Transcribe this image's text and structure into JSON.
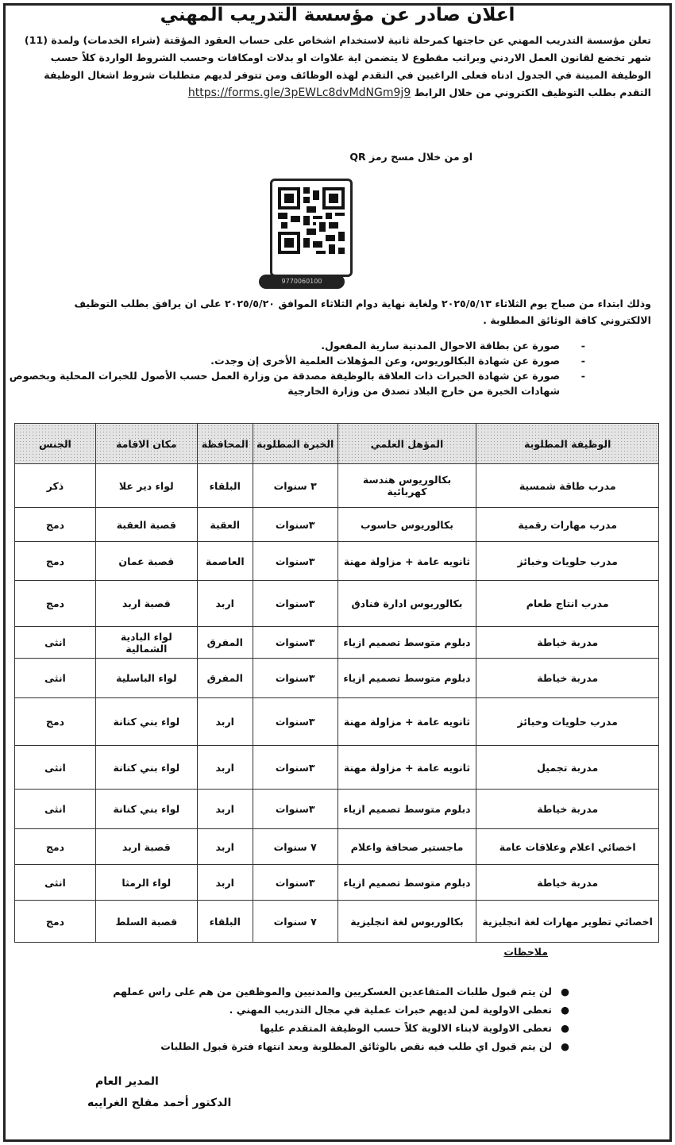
{
  "title": "اعلان صادر عن مؤسسة التدريب المهني",
  "intro": {
    "text": "تعلن مؤسسة التدريب المهني عن حاجتها كمرحلة ثانية لاستخدام اشخاص على حساب العقود المؤقتة (شراء الخدمات) ولمدة (11) شهر تخضع لقانون العمل الاردني وبراتب مقطوع لا يتضمن اية علاوات او بدلات اومكافات وحسب الشروط الواردة كلاً حسب الوظيفة المبينة في الجدول ادناه فعلى الراغبين في التقدم لهذه الوظائف ومن تتوفر لديهم متطلبات شروط اشغال الوظيفة التقدم بطلب التوظيف الكتروني من خلال الرابط",
    "link": "https://forms.gle/3pEWLc8dvMdNGm9j9"
  },
  "qr": {
    "label": "او من خلال مسح رمز QR",
    "pill_text": "9770060100"
  },
  "dates_text": "وذلك ابتداء من صباح يوم الثلاثاء ٢٠٢٥/٥/١٣ ولغاية نهاية دوام الثلاثاء الموافق ٢٠٢٥/٥/٢٠ على ان يرافق بطلب التوظيف الالكتروني كافة الوثائق المطلوبة .",
  "documents": [
    "صورة عن بطاقة الاحوال المدنية سارية المفعول.",
    "صورة عن شهادة البكالوريوس، وعن المؤهلات العلمية الأخرى إن وجدت.",
    "صورة عن شهادة الخبرات ذات العلاقة بالوظيفة مصدقة من وزارة العمل حسب الأصول للخبرات المحلية وبخصوص شهادات الخبرة من خارج البلاد تصدق من وزارة الخارجية"
  ],
  "table": {
    "headers": [
      "الوظيفة المطلوبة",
      "المؤهل العلمي",
      "الخبرة المطلوبة",
      "المحافظة",
      "مكان الاقامة",
      "الجنس"
    ],
    "rows": [
      [
        "مدرب طاقة شمسية",
        "بكالوريوس هندسة كهربائية",
        "٣ سنوات",
        "البلقاء",
        "لواء دير علا",
        "ذكر"
      ],
      [
        "مدرب مهارات رقمية",
        "بكالوريوس حاسوب",
        "٣سنوات",
        "العقبة",
        "قصبة العقبة",
        "دمج"
      ],
      [
        "مدرب حلويات وخبائز",
        "ثانويه عامة + مزاولة مهنة",
        "٣سنوات",
        "العاصمة",
        "قصبة عمان",
        "دمج"
      ],
      [
        "مدرب انتاج طعام",
        "بكالوريوس ادارة فنادق",
        "٣سنوات",
        "اربد",
        "قصبة اربد",
        "دمج"
      ],
      [
        "مدربة خياطة",
        "دبلوم متوسط تصميم ازياء",
        "٣سنوات",
        "المفرق",
        "لواء البادية الشمالية",
        "انثى"
      ],
      [
        "مدربة خياطة",
        "دبلوم متوسط تصميم ازياء",
        "٣سنوات",
        "المفرق",
        "لواء الباسلية",
        "انثى"
      ],
      [
        "مدرب حلويات وخبائز",
        "ثانويه عامة + مزاولة مهنة",
        "٣سنوات",
        "اربد",
        "لواء بني كنانة",
        "دمج"
      ],
      [
        "مدربة تجميل",
        "ثانويه عامة + مزاولة مهنة",
        "٣سنوات",
        "اربد",
        "لواء بني كنانة",
        "انثى"
      ],
      [
        "مدربة خياطة",
        "دبلوم متوسط تصميم ازياء",
        "٣سنوات",
        "اربد",
        "لواء بني كنانة",
        "انثى"
      ],
      [
        "اخصائي اعلام وعلاقات عامة",
        "ماجستير صحافة واعلام",
        "٧ سنوات",
        "اربد",
        "قصبة اربد",
        "دمج"
      ],
      [
        "مدربة خياطة",
        "دبلوم متوسط تصميم ازياء",
        "٣سنوات",
        "اربد",
        "لواء الرمثا",
        "انثى"
      ],
      [
        "اخصائي تطوير مهارات لغة انجليزية",
        "بكالوريوس لغة انجليزية",
        "٧ سنوات",
        "البلقاء",
        "قصبة السلط",
        "دمج"
      ]
    ]
  },
  "notes": {
    "heading": "ملاحظات",
    "items": [
      "لن يتم قبول طلبات المتقاعدين العسكريين والمدنيين والموظفين من هم على راس عملهم",
      "تعطى الاولوية لمن لديهم خبرات عملية في مجال التدريب المهني .",
      "تعطى الاولوية لابناء الالوية كلاً حسب الوظيفة المتقدم عليها",
      "لن يتم قبول اي طلب فيه نقص بالوثائق المطلوبة وبعد انتهاء فترة قبول الطلبات"
    ]
  },
  "signature": {
    "role": "المدير العام",
    "name": "الدكتور أحمد مفلح الغرايبه"
  }
}
